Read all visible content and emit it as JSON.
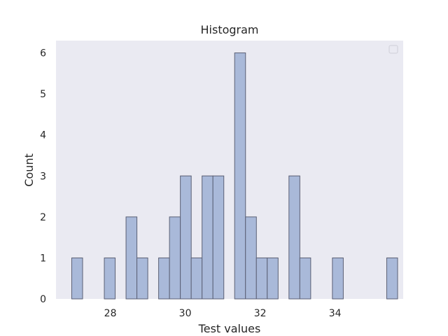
{
  "chart_data": {
    "type": "bar",
    "title": "Histogram",
    "xlabel": "Test values",
    "ylabel": "Count",
    "xlim": [
      26.55,
      35.82
    ],
    "ylim": [
      0,
      6.3
    ],
    "x_ticks": [
      28,
      30,
      32,
      34
    ],
    "y_ticks": [
      0,
      1,
      2,
      3,
      4,
      5,
      6
    ],
    "bin_width": 0.2905,
    "bins": [
      {
        "start": 26.97,
        "count": 1
      },
      {
        "start": 27.26,
        "count": 0
      },
      {
        "start": 27.55,
        "count": 0
      },
      {
        "start": 27.84,
        "count": 1
      },
      {
        "start": 28.13,
        "count": 0
      },
      {
        "start": 28.42,
        "count": 2
      },
      {
        "start": 28.71,
        "count": 1
      },
      {
        "start": 29.0,
        "count": 0
      },
      {
        "start": 29.29,
        "count": 1
      },
      {
        "start": 29.58,
        "count": 2
      },
      {
        "start": 29.87,
        "count": 3
      },
      {
        "start": 30.16,
        "count": 1
      },
      {
        "start": 30.45,
        "count": 3
      },
      {
        "start": 30.74,
        "count": 3
      },
      {
        "start": 31.03,
        "count": 0
      },
      {
        "start": 31.32,
        "count": 6
      },
      {
        "start": 31.61,
        "count": 2
      },
      {
        "start": 31.9,
        "count": 1
      },
      {
        "start": 32.19,
        "count": 1
      },
      {
        "start": 32.48,
        "count": 0
      },
      {
        "start": 32.77,
        "count": 3
      },
      {
        "start": 33.06,
        "count": 1
      },
      {
        "start": 33.35,
        "count": 0
      },
      {
        "start": 33.64,
        "count": 0
      },
      {
        "start": 33.93,
        "count": 1
      },
      {
        "start": 34.22,
        "count": 0
      },
      {
        "start": 34.51,
        "count": 0
      },
      {
        "start": 34.8,
        "count": 0
      },
      {
        "start": 35.09,
        "count": 0
      },
      {
        "start": 35.38,
        "count": 1
      }
    ],
    "grid": false,
    "legend": "top-right",
    "colors": {
      "plot_background": "#eaeaf2",
      "bar_fill": "#a9b9d9",
      "bar_edge": "#5b6075"
    }
  }
}
